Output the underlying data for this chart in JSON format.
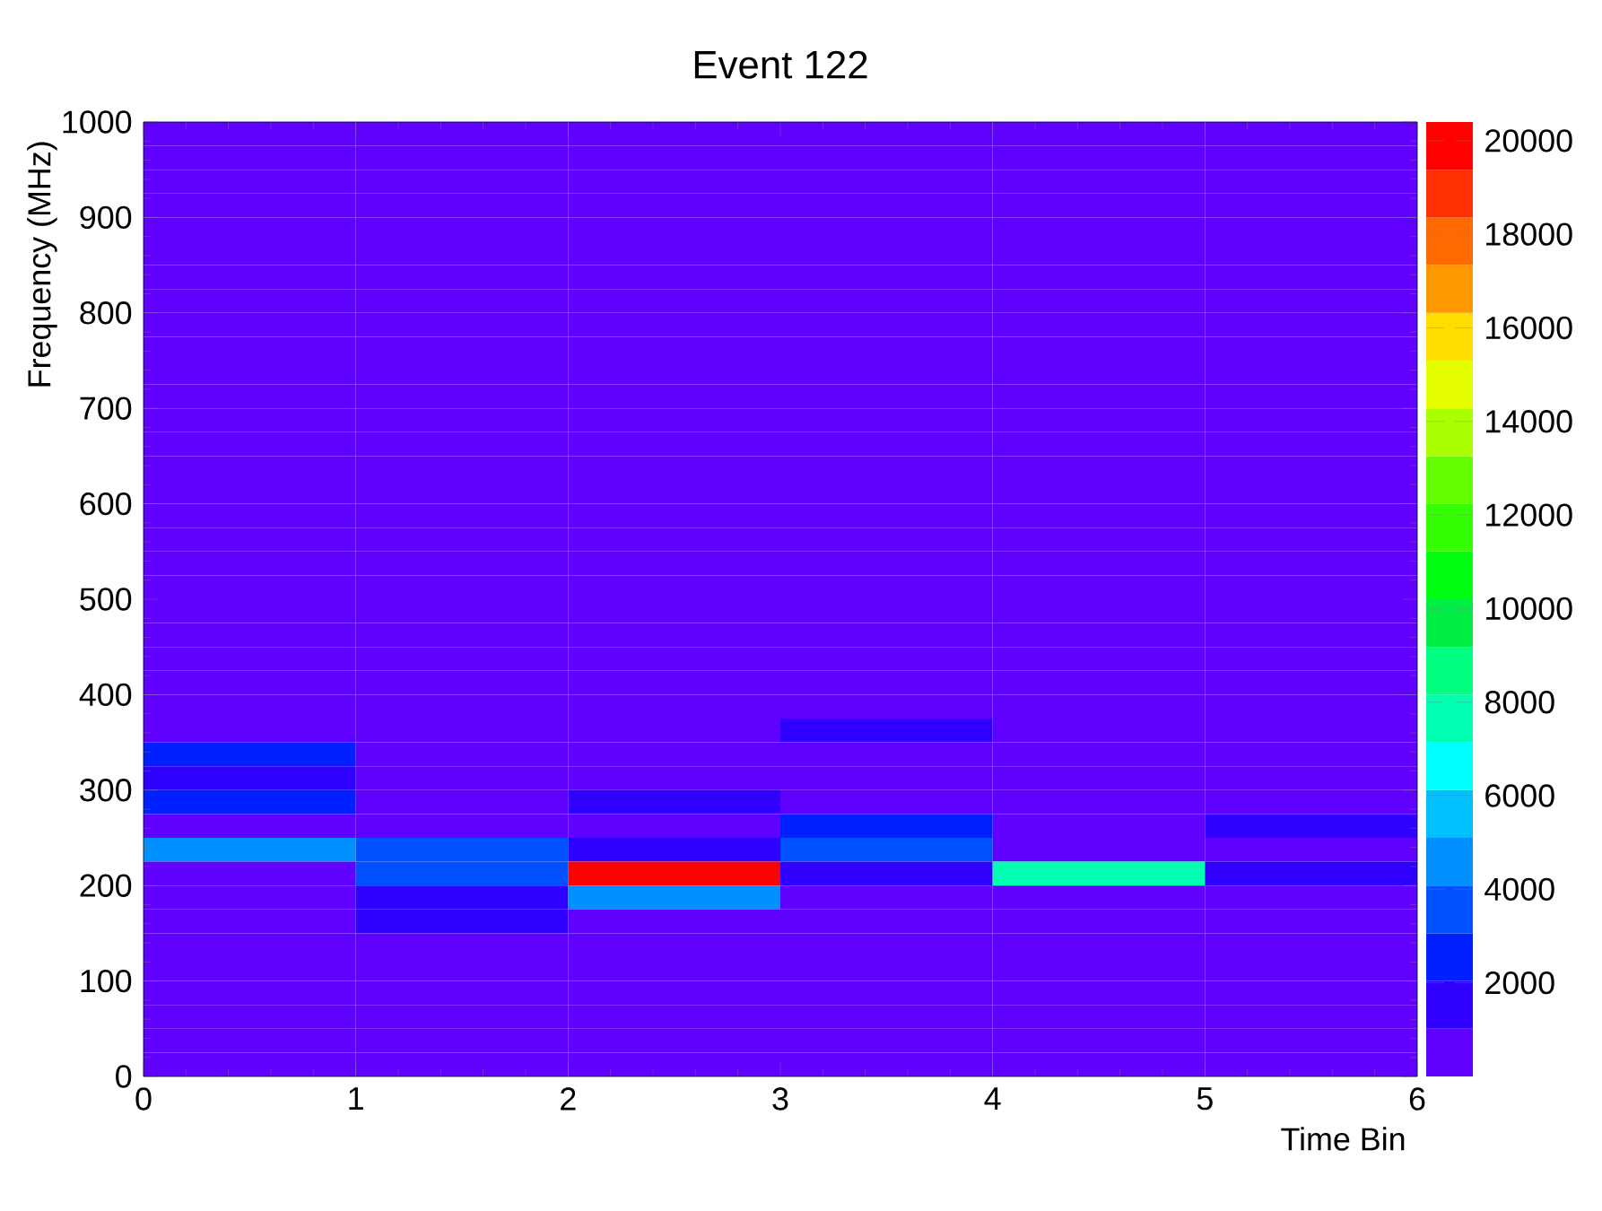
{
  "chart_data": {
    "type": "heatmap",
    "title": "Event 122",
    "xlabel": "Time Bin",
    "ylabel": "Frequency (MHz)",
    "cells": [
      [
        0,
        0,
        0,
        0,
        0,
        0
      ],
      [
        0,
        0,
        0,
        0,
        0,
        0
      ],
      [
        0,
        0,
        0,
        0,
        0,
        0
      ],
      [
        0,
        0,
        0,
        0,
        0,
        0
      ],
      [
        0,
        0,
        0,
        0,
        0,
        0
      ],
      [
        0,
        0,
        0,
        0,
        0,
        0
      ],
      [
        0,
        0,
        0,
        0,
        0,
        0
      ],
      [
        0,
        0,
        0,
        0,
        0,
        0
      ],
      [
        0,
        0,
        0,
        0,
        0,
        0
      ],
      [
        0,
        0,
        0,
        0,
        0,
        0
      ],
      [
        0,
        0,
        0,
        0,
        0,
        0
      ],
      [
        0,
        0,
        0,
        0,
        0,
        0
      ],
      [
        0,
        0,
        0,
        0,
        0,
        0
      ],
      [
        0,
        0,
        0,
        0,
        0,
        0
      ],
      [
        0,
        0,
        0,
        0,
        0,
        0
      ],
      [
        0,
        0,
        0,
        0,
        0,
        0
      ],
      [
        0,
        0,
        0,
        0,
        0,
        0
      ],
      [
        0,
        0,
        0,
        0,
        0,
        0
      ],
      [
        0,
        0,
        0,
        0,
        0,
        0
      ],
      [
        0,
        0,
        0,
        0,
        0,
        0
      ],
      [
        0,
        0,
        0,
        0,
        0,
        0
      ],
      [
        0,
        0,
        0,
        0,
        0,
        0
      ],
      [
        0,
        0,
        0,
        0,
        0,
        0
      ],
      [
        0,
        0,
        0,
        0,
        0,
        0
      ],
      [
        0,
        0,
        0,
        0,
        0,
        0
      ],
      [
        0,
        0,
        0,
        1500,
        0,
        0
      ],
      [
        3000,
        0,
        0,
        0,
        0,
        0
      ],
      [
        2000,
        0,
        0,
        0,
        0,
        0
      ],
      [
        3000,
        0,
        2000,
        0,
        0,
        0
      ],
      [
        0,
        0,
        0,
        2500,
        0,
        1500
      ],
      [
        4500,
        4000,
        1500,
        4000,
        0,
        0
      ],
      [
        0,
        4000,
        20000,
        1500,
        7500,
        1500
      ],
      [
        0,
        1500,
        5000,
        0,
        0,
        0
      ],
      [
        0,
        1500,
        0,
        0,
        0,
        0
      ],
      [
        0,
        0,
        0,
        0,
        0,
        0
      ],
      [
        0,
        0,
        0,
        0,
        0,
        0
      ],
      [
        0,
        0,
        0,
        0,
        0,
        0
      ],
      [
        0,
        0,
        0,
        0,
        0,
        0
      ],
      [
        0,
        0,
        0,
        0,
        0,
        0
      ],
      [
        0,
        0,
        0,
        0,
        0,
        0
      ]
    ],
    "xlim": [
      0,
      6
    ],
    "xticks": [
      0,
      1,
      2,
      3,
      4,
      5,
      6
    ],
    "ylim": [
      0,
      1000
    ],
    "yticks": [
      0,
      100,
      200,
      300,
      400,
      500,
      600,
      700,
      800,
      900,
      1000
    ],
    "clim": [
      0,
      20400
    ],
    "cticks": [
      2000,
      4000,
      6000,
      8000,
      10000,
      12000,
      14000,
      16000,
      18000,
      20000
    ]
  }
}
